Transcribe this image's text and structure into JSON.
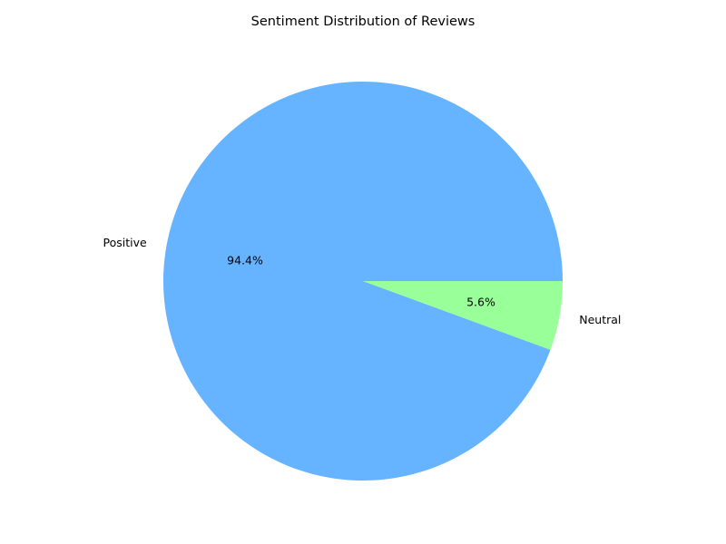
{
  "chart_data": {
    "type": "pie",
    "title": "Sentiment Distribution of Reviews",
    "slices": [
      {
        "label": "Positive",
        "value": 94.4,
        "pct_label": "94.4%",
        "color": "#66b3ff"
      },
      {
        "label": "Neutral",
        "value": 5.6,
        "pct_label": "5.6%",
        "color": "#99ff99"
      }
    ],
    "start_angle_deg": 0,
    "direction": "counterclockwise",
    "legend": "none"
  }
}
